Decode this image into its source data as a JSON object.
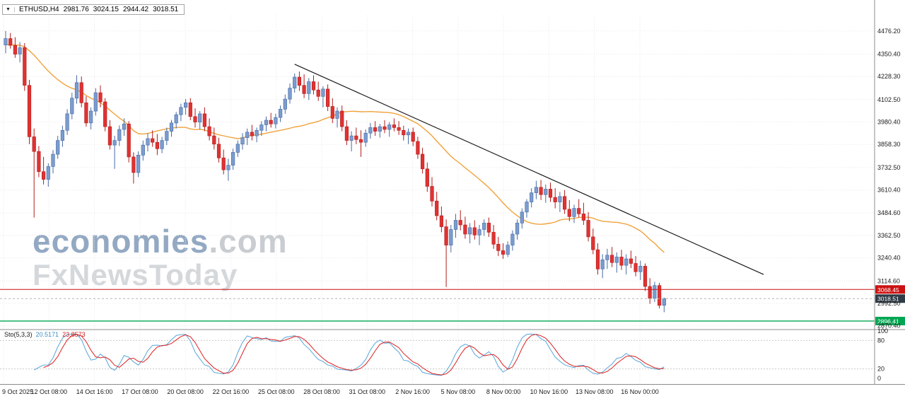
{
  "header": {
    "symbol": "ETHUSD,H4",
    "ohlc": {
      "open": "2981.76",
      "high": "3024.15",
      "low": "2944.42",
      "close": "3018.51"
    }
  },
  "watermark": {
    "line1_main": "economies",
    "line1_suffix": ".com",
    "line2": "FxNewsToday"
  },
  "indicator_label": {
    "name": "Sto(5,3,3)",
    "main_value": "20.5171",
    "signal_value": "23.8573"
  },
  "colors": {
    "candle_up": "#7b9cce",
    "candle_up_border": "#466ba6",
    "candle_down": "#e03232",
    "candle_down_border": "#b31c1c",
    "ma": "#f0a23c",
    "trendline": "#1a1a1a",
    "resistance": "#cc1111",
    "support": "#00a651",
    "current_line": "#b4b4b4",
    "current_box": "#2f3b47",
    "grid": "#e8e8e8",
    "separator": "#8c8c8c",
    "stoch_main": "#58a6d8",
    "stoch_signal": "#dd2020",
    "stoch_level": "#c8c8c8",
    "axis_text": "#1c1c1c"
  },
  "chart_data": {
    "type": "candlestick",
    "symbol": "ETHUSD",
    "timeframe": "H4",
    "title": "ETHUSD H4 candlestick chart with SMA, descending trendline and Stochastic(5,3,3)",
    "price_range": {
      "min": 2850,
      "max": 4560
    },
    "price_axis_ticks": [
      "4476.20",
      "4350.40",
      "4228.30",
      "4102.50",
      "3980.40",
      "3858.30",
      "3732.50",
      "3610.40",
      "3484.60",
      "3362.50",
      "3240.40",
      "3114.60",
      "2992.50",
      "2870.40"
    ],
    "time_axis_ticks": [
      "9 Oct 2025",
      "12 Oct 08:00",
      "14 Oct 16:00",
      "17 Oct 08:00",
      "20 Oct 08:00",
      "22 Oct 16:00",
      "25 Oct 08:00",
      "28 Oct 08:00",
      "31 Oct 08:00",
      "2 Nov 16:00",
      "5 Nov 08:00",
      "8 Nov 00:00",
      "10 Nov 16:00",
      "13 Nov 08:00",
      "16 Nov 00:00"
    ],
    "candles": [
      [
        4400,
        4476,
        4355,
        4435
      ],
      [
        4435,
        4465,
        4380,
        4398
      ],
      [
        4398,
        4442,
        4330,
        4350
      ],
      [
        4350,
        4415,
        4305,
        4385
      ],
      [
        4385,
        4410,
        4150,
        4180
      ],
      [
        4180,
        4210,
        3860,
        3900
      ],
      [
        3900,
        3945,
        3460,
        3820
      ],
      [
        3820,
        3850,
        3680,
        3710
      ],
      [
        3710,
        3790,
        3640,
        3668
      ],
      [
        3668,
        3755,
        3628,
        3738
      ],
      [
        3738,
        3828,
        3700,
        3805
      ],
      [
        3805,
        3905,
        3780,
        3880
      ],
      [
        3880,
        3960,
        3845,
        3935
      ],
      [
        3935,
        4050,
        3910,
        4025
      ],
      [
        4025,
        4140,
        3995,
        4110
      ],
      [
        4110,
        4235,
        4080,
        4195
      ],
      [
        4195,
        4228,
        4060,
        4085
      ],
      [
        4085,
        4120,
        3955,
        3975
      ],
      [
        3975,
        4060,
        3940,
        4040
      ],
      [
        4040,
        4165,
        4015,
        4140
      ],
      [
        4140,
        4180,
        4060,
        4090
      ],
      [
        4090,
        4110,
        3930,
        3955
      ],
      [
        3955,
        3990,
        3830,
        3855
      ],
      [
        3855,
        3905,
        3725,
        3880
      ],
      [
        3880,
        3962,
        3850,
        3940
      ],
      [
        3940,
        4000,
        3905,
        3970
      ],
      [
        3970,
        3985,
        3760,
        3790
      ],
      [
        3790,
        3815,
        3645,
        3705
      ],
      [
        3705,
        3820,
        3680,
        3800
      ],
      [
        3800,
        3880,
        3770,
        3855
      ],
      [
        3855,
        3920,
        3820,
        3890
      ],
      [
        3890,
        3935,
        3845,
        3870
      ],
      [
        3870,
        3915,
        3800,
        3835
      ],
      [
        3835,
        3900,
        3810,
        3880
      ],
      [
        3880,
        3950,
        3855,
        3930
      ],
      [
        3930,
        3992,
        3900,
        3975
      ],
      [
        3975,
        4035,
        3945,
        4020
      ],
      [
        4020,
        4080,
        3985,
        4060
      ],
      [
        4060,
        4105,
        4020,
        4085
      ],
      [
        4085,
        4110,
        3990,
        4010
      ],
      [
        4010,
        4055,
        3950,
        3980
      ],
      [
        3980,
        4040,
        3940,
        4025
      ],
      [
        4025,
        4060,
        3930,
        3955
      ],
      [
        3955,
        4000,
        3880,
        3905
      ],
      [
        3905,
        3950,
        3830,
        3860
      ],
      [
        3860,
        3895,
        3760,
        3785
      ],
      [
        3785,
        3830,
        3695,
        3720
      ],
      [
        3720,
        3780,
        3660,
        3745
      ],
      [
        3745,
        3835,
        3720,
        3815
      ],
      [
        3815,
        3880,
        3790,
        3860
      ],
      [
        3860,
        3920,
        3830,
        3895
      ],
      [
        3895,
        3945,
        3855,
        3925
      ],
      [
        3925,
        3965,
        3880,
        3905
      ],
      [
        3905,
        3950,
        3870,
        3935
      ],
      [
        3935,
        3985,
        3905,
        3965
      ],
      [
        3965,
        4010,
        3930,
        3990
      ],
      [
        3990,
        4030,
        3950,
        3970
      ],
      [
        3970,
        4025,
        3945,
        4005
      ],
      [
        4005,
        4070,
        3980,
        4050
      ],
      [
        4050,
        4130,
        4025,
        4105
      ],
      [
        4105,
        4190,
        4080,
        4165
      ],
      [
        4165,
        4245,
        4140,
        4225
      ],
      [
        4225,
        4255,
        4150,
        4180
      ],
      [
        4180,
        4240,
        4110,
        4135
      ],
      [
        4135,
        4220,
        4100,
        4200
      ],
      [
        4200,
        4235,
        4130,
        4155
      ],
      [
        4155,
        4200,
        4095,
        4120
      ],
      [
        4120,
        4175,
        4060,
        4160
      ],
      [
        4160,
        4185,
        4040,
        4065
      ],
      [
        4065,
        4110,
        3975,
        4000
      ],
      [
        4000,
        4060,
        3950,
        4040
      ],
      [
        4040,
        4070,
        3930,
        3955
      ],
      [
        3955,
        3990,
        3855,
        3880
      ],
      [
        3880,
        3930,
        3820,
        3905
      ],
      [
        3905,
        3950,
        3860,
        3885
      ],
      [
        3885,
        3935,
        3790,
        3870
      ],
      [
        3870,
        3940,
        3845,
        3920
      ],
      [
        3920,
        3975,
        3890,
        3950
      ],
      [
        3950,
        3985,
        3905,
        3930
      ],
      [
        3930,
        3970,
        3895,
        3955
      ],
      [
        3955,
        3990,
        3920,
        3940
      ],
      [
        3940,
        3980,
        3900,
        3965
      ],
      [
        3965,
        4000,
        3930,
        3950
      ],
      [
        3950,
        3985,
        3910,
        3935
      ],
      [
        3935,
        3960,
        3880,
        3910
      ],
      [
        3910,
        3945,
        3860,
        3925
      ],
      [
        3925,
        3950,
        3850,
        3875
      ],
      [
        3875,
        3900,
        3780,
        3805
      ],
      [
        3805,
        3840,
        3700,
        3725
      ],
      [
        3725,
        3760,
        3600,
        3630
      ],
      [
        3630,
        3680,
        3520,
        3550
      ],
      [
        3550,
        3600,
        3445,
        3470
      ],
      [
        3470,
        3520,
        3380,
        3410
      ],
      [
        3410,
        3450,
        3082,
        3310
      ],
      [
        3310,
        3420,
        3270,
        3395
      ],
      [
        3395,
        3480,
        3350,
        3445
      ],
      [
        3445,
        3500,
        3390,
        3420
      ],
      [
        3420,
        3465,
        3345,
        3370
      ],
      [
        3370,
        3430,
        3320,
        3405
      ],
      [
        3405,
        3445,
        3340,
        3365
      ],
      [
        3365,
        3420,
        3310,
        3395
      ],
      [
        3395,
        3450,
        3360,
        3430
      ],
      [
        3430,
        3460,
        3355,
        3380
      ],
      [
        3380,
        3420,
        3290,
        3315
      ],
      [
        3315,
        3355,
        3250,
        3280
      ],
      [
        3280,
        3320,
        3235,
        3260
      ],
      [
        3260,
        3330,
        3245,
        3310
      ],
      [
        3310,
        3390,
        3280,
        3370
      ],
      [
        3370,
        3450,
        3340,
        3430
      ],
      [
        3430,
        3510,
        3400,
        3490
      ],
      [
        3490,
        3560,
        3460,
        3545
      ],
      [
        3545,
        3620,
        3515,
        3595
      ],
      [
        3595,
        3660,
        3560,
        3625
      ],
      [
        3625,
        3665,
        3555,
        3585
      ],
      [
        3585,
        3640,
        3540,
        3615
      ],
      [
        3615,
        3650,
        3545,
        3570
      ],
      [
        3570,
        3620,
        3510,
        3545
      ],
      [
        3545,
        3600,
        3490,
        3575
      ],
      [
        3575,
        3610,
        3480,
        3505
      ],
      [
        3505,
        3555,
        3440,
        3465
      ],
      [
        3465,
        3530,
        3430,
        3510
      ],
      [
        3510,
        3560,
        3460,
        3480
      ],
      [
        3480,
        3540,
        3420,
        3445
      ],
      [
        3445,
        3490,
        3330,
        3355
      ],
      [
        3355,
        3400,
        3260,
        3285
      ],
      [
        3285,
        3320,
        3150,
        3180
      ],
      [
        3180,
        3260,
        3130,
        3230
      ],
      [
        3230,
        3290,
        3180,
        3255
      ],
      [
        3255,
        3300,
        3190,
        3215
      ],
      [
        3215,
        3270,
        3160,
        3245
      ],
      [
        3245,
        3285,
        3175,
        3200
      ],
      [
        3200,
        3260,
        3150,
        3235
      ],
      [
        3235,
        3280,
        3185,
        3210
      ],
      [
        3210,
        3250,
        3140,
        3165
      ],
      [
        3165,
        3225,
        3120,
        3195
      ],
      [
        3195,
        3210,
        3060,
        3085
      ],
      [
        3085,
        3130,
        2990,
        3020
      ],
      [
        3020,
        3110,
        3000,
        3090
      ],
      [
        3090,
        3105,
        2965,
        2982
      ],
      [
        2981.76,
        3024.15,
        2944.42,
        3018.51
      ]
    ],
    "ma": {
      "period": 24
    },
    "trendline": {
      "from_index": 61,
      "from_price": 4295,
      "to_index": 160,
      "to_price": 3150
    },
    "levels": [
      {
        "price": 3068.45,
        "label": "3068.45",
        "type": "resistance"
      },
      {
        "price": 3018.51,
        "label": "3018.51",
        "type": "current"
      },
      {
        "price": 2896.41,
        "label": "2896.41",
        "type": "support"
      }
    ],
    "stochastic": {
      "k": 5,
      "slowing": 3,
      "d": 3,
      "levels": [
        80,
        20
      ],
      "scale_ticks": [
        {
          "label": "100",
          "value": 100
        },
        {
          "label": "80",
          "value": 80
        },
        {
          "label": "20",
          "value": 20
        },
        {
          "label": "0",
          "value": 0
        }
      ],
      "main_last": "20.5171",
      "signal_last": "23.8573"
    }
  }
}
